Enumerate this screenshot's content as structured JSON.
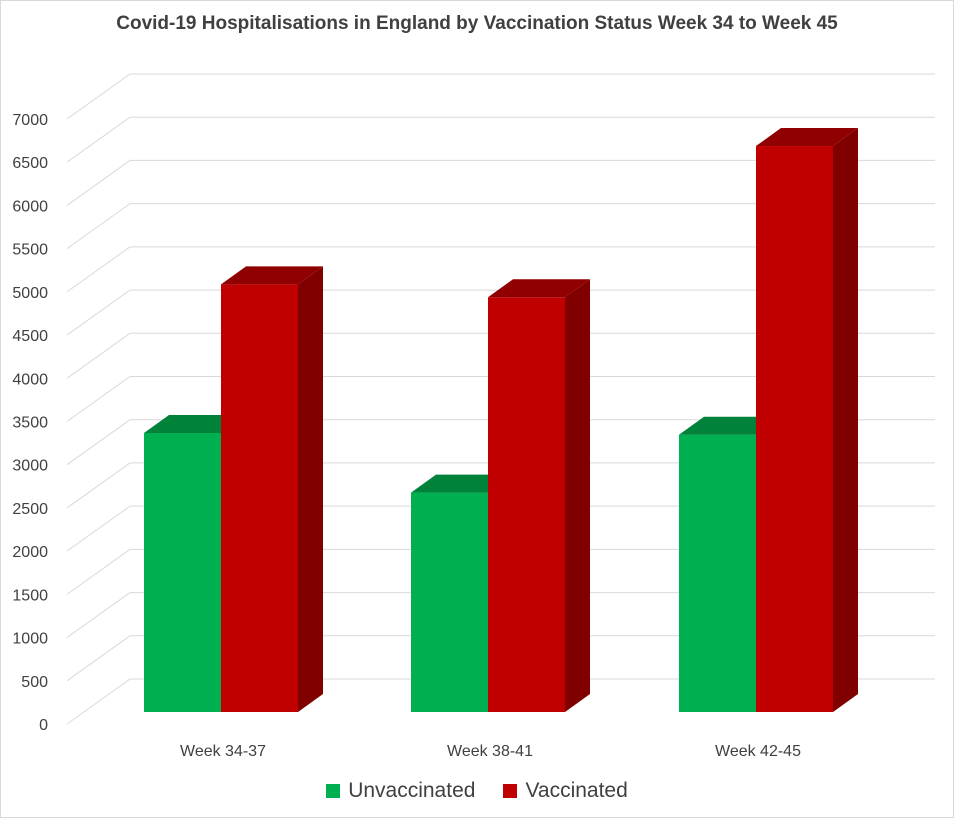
{
  "chart_data": {
    "type": "bar",
    "title": "Covid-19 Hospitalisations in England by Vaccination Status Week 34 to Week 45",
    "xlabel": "",
    "ylabel": "",
    "categories": [
      "Week 34-37",
      "Week 38-41",
      "Week 42-45"
    ],
    "series": [
      {
        "name": "Unvaccinated",
        "values": [
          3240,
          2550,
          3220
        ],
        "color": "#00b050",
        "top_color": "#00823b",
        "side_color": "#006e30"
      },
      {
        "name": "Vaccinated",
        "values": [
          4960,
          4810,
          6560
        ],
        "color": "#c00000",
        "top_color": "#900000",
        "side_color": "#800000"
      }
    ],
    "ylim": [
      0,
      7000
    ],
    "yticks": [
      "0",
      "500",
      "1000",
      "1500",
      "2000",
      "2500",
      "3000",
      "3500",
      "4000",
      "4500",
      "5000",
      "5500",
      "6000",
      "6500",
      "7000"
    ],
    "grid": true,
    "legend_position": "bottom",
    "style": "3d-clustered-column"
  }
}
